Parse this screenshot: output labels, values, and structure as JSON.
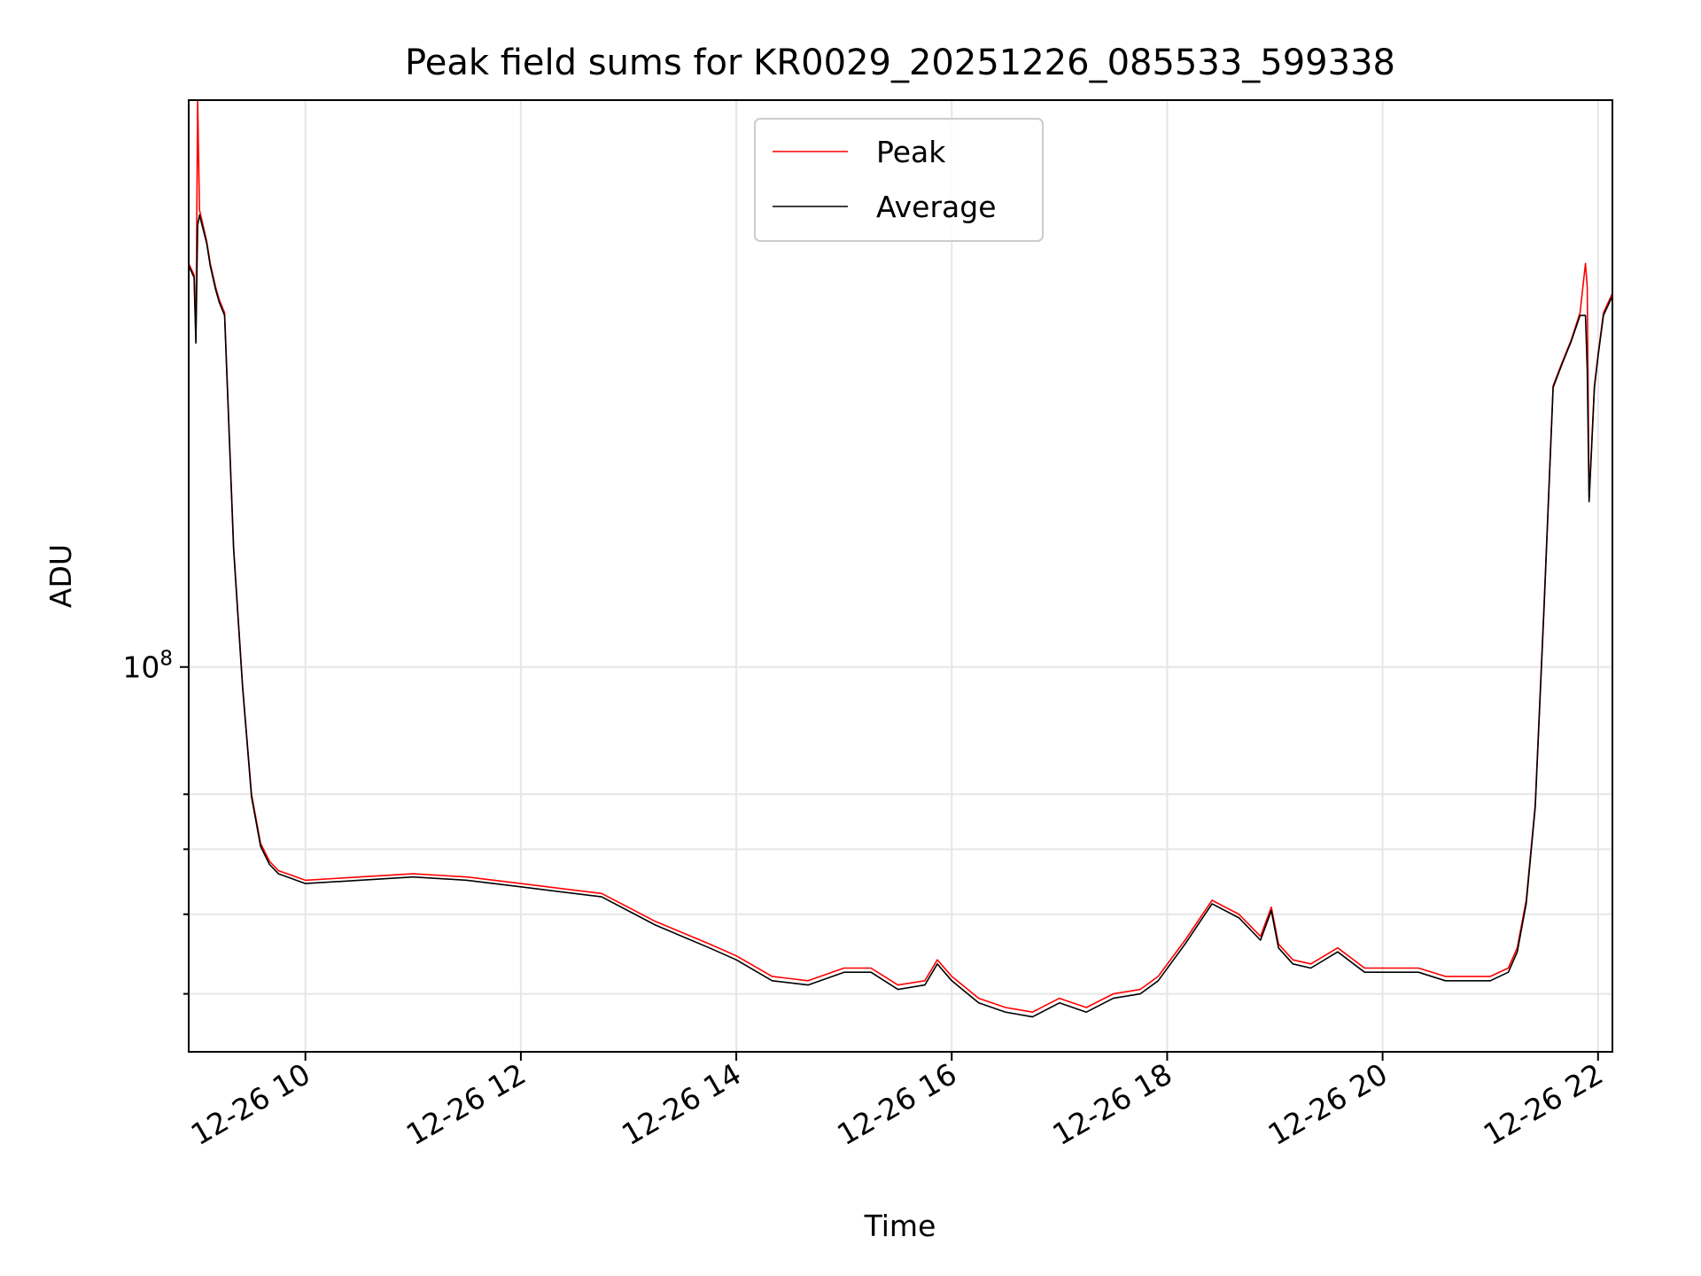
{
  "chart_data": {
    "type": "line",
    "title": "Peak field sums for KR0029_20251226_085533_599338",
    "xlabel": "Time",
    "ylabel": "ADU",
    "xscale": "time",
    "yscale": "log",
    "xlim": [
      "2025-12-26T08:55",
      "2025-12-26T22:08"
    ],
    "ylim": [
      34000000,
      490000000
    ],
    "xticks": [
      {
        "value": "2025-12-26T10:00",
        "label": "12-26 10"
      },
      {
        "value": "2025-12-26T12:00",
        "label": "12-26 12"
      },
      {
        "value": "2025-12-26T14:00",
        "label": "12-26 14"
      },
      {
        "value": "2025-12-26T16:00",
        "label": "12-26 16"
      },
      {
        "value": "2025-12-26T18:00",
        "label": "12-26 18"
      },
      {
        "value": "2025-12-26T20:00",
        "label": "12-26 20"
      },
      {
        "value": "2025-12-26T22:00",
        "label": "12-26 22"
      }
    ],
    "yticks_major": [
      {
        "value": 100000000,
        "label_base": "10",
        "label_exp": "8"
      }
    ],
    "yticks_minor": [
      40000000,
      50000000,
      60000000,
      70000000
    ],
    "grid": true,
    "legend_position": "top-center",
    "series": [
      {
        "name": "Peak",
        "color": "#ff0000",
        "x": [
          "2025-12-26T08:55",
          "2025-12-26T08:58",
          "2025-12-26T08:59",
          "2025-12-26T09:00",
          "2025-12-26T09:01",
          "2025-12-26T09:05",
          "2025-12-26T09:07",
          "2025-12-26T09:10",
          "2025-12-26T09:12",
          "2025-12-26T09:15",
          "2025-12-26T09:20",
          "2025-12-26T09:25",
          "2025-12-26T09:30",
          "2025-12-26T09:35",
          "2025-12-26T09:40",
          "2025-12-26T09:45",
          "2025-12-26T09:50",
          "2025-12-26T10:00",
          "2025-12-26T10:30",
          "2025-12-26T11:00",
          "2025-12-26T11:30",
          "2025-12-26T12:00",
          "2025-12-26T12:45",
          "2025-12-26T13:15",
          "2025-12-26T13:45",
          "2025-12-26T14:00",
          "2025-12-26T14:20",
          "2025-12-26T14:40",
          "2025-12-26T15:00",
          "2025-12-26T15:15",
          "2025-12-26T15:30",
          "2025-12-26T15:45",
          "2025-12-26T15:52",
          "2025-12-26T16:00",
          "2025-12-26T16:15",
          "2025-12-26T16:30",
          "2025-12-26T16:45",
          "2025-12-26T17:00",
          "2025-12-26T17:15",
          "2025-12-26T17:30",
          "2025-12-26T17:45",
          "2025-12-26T17:55",
          "2025-12-26T18:10",
          "2025-12-26T18:25",
          "2025-12-26T18:40",
          "2025-12-26T18:52",
          "2025-12-26T18:58",
          "2025-12-26T19:02",
          "2025-12-26T19:10",
          "2025-12-26T19:20",
          "2025-12-26T19:35",
          "2025-12-26T19:50",
          "2025-12-26T20:00",
          "2025-12-26T20:20",
          "2025-12-26T20:35",
          "2025-12-26T21:00",
          "2025-12-26T21:10",
          "2025-12-26T21:15",
          "2025-12-26T21:20",
          "2025-12-26T21:25",
          "2025-12-26T21:30",
          "2025-12-26T21:35",
          "2025-12-26T21:40",
          "2025-12-26T21:45",
          "2025-12-26T21:50",
          "2025-12-26T21:53",
          "2025-12-26T21:54",
          "2025-12-26T21:55",
          "2025-12-26T21:58",
          "2025-12-26T22:00",
          "2025-12-26T22:03",
          "2025-12-26T22:08"
        ],
        "y": [
          310000000,
          300000000,
          250000000,
          490000000,
          360000000,
          330000000,
          310000000,
          290000000,
          280000000,
          270000000,
          140000000,
          95000000,
          70000000,
          61000000,
          58000000,
          56500000,
          56000000,
          55000000,
          55500000,
          56000000,
          55500000,
          54500000,
          53000000,
          49000000,
          46000000,
          44500000,
          42000000,
          41500000,
          43000000,
          43000000,
          41000000,
          41500000,
          44000000,
          42000000,
          39500000,
          38500000,
          38000000,
          39500000,
          38500000,
          40000000,
          40500000,
          42000000,
          46500000,
          52000000,
          50000000,
          47000000,
          51000000,
          46000000,
          44000000,
          43500000,
          45500000,
          43000000,
          43000000,
          43000000,
          42000000,
          42000000,
          43000000,
          45500000,
          52000000,
          68000000,
          120000000,
          220000000,
          235000000,
          250000000,
          270000000,
          310000000,
          290000000,
          160000000,
          220000000,
          240000000,
          270000000,
          285000000
        ]
      },
      {
        "name": "Average",
        "color": "#000000",
        "x": [
          "2025-12-26T08:55",
          "2025-12-26T08:58",
          "2025-12-26T08:59",
          "2025-12-26T09:00",
          "2025-12-26T09:01",
          "2025-12-26T09:05",
          "2025-12-26T09:07",
          "2025-12-26T09:10",
          "2025-12-26T09:12",
          "2025-12-26T09:15",
          "2025-12-26T09:20",
          "2025-12-26T09:25",
          "2025-12-26T09:30",
          "2025-12-26T09:35",
          "2025-12-26T09:40",
          "2025-12-26T09:45",
          "2025-12-26T09:50",
          "2025-12-26T10:00",
          "2025-12-26T10:30",
          "2025-12-26T11:00",
          "2025-12-26T11:30",
          "2025-12-26T12:00",
          "2025-12-26T12:45",
          "2025-12-26T13:15",
          "2025-12-26T13:45",
          "2025-12-26T14:00",
          "2025-12-26T14:20",
          "2025-12-26T14:40",
          "2025-12-26T15:00",
          "2025-12-26T15:15",
          "2025-12-26T15:30",
          "2025-12-26T15:45",
          "2025-12-26T15:52",
          "2025-12-26T16:00",
          "2025-12-26T16:15",
          "2025-12-26T16:30",
          "2025-12-26T16:45",
          "2025-12-26T17:00",
          "2025-12-26T17:15",
          "2025-12-26T17:30",
          "2025-12-26T17:45",
          "2025-12-26T17:55",
          "2025-12-26T18:10",
          "2025-12-26T18:25",
          "2025-12-26T18:40",
          "2025-12-26T18:52",
          "2025-12-26T18:58",
          "2025-12-26T19:02",
          "2025-12-26T19:10",
          "2025-12-26T19:20",
          "2025-12-26T19:35",
          "2025-12-26T19:50",
          "2025-12-26T20:00",
          "2025-12-26T20:20",
          "2025-12-26T20:35",
          "2025-12-26T21:00",
          "2025-12-26T21:10",
          "2025-12-26T21:15",
          "2025-12-26T21:20",
          "2025-12-26T21:25",
          "2025-12-26T21:30",
          "2025-12-26T21:35",
          "2025-12-26T21:40",
          "2025-12-26T21:45",
          "2025-12-26T21:50",
          "2025-12-26T21:53",
          "2025-12-26T21:54",
          "2025-12-26T21:55",
          "2025-12-26T21:58",
          "2025-12-26T22:00",
          "2025-12-26T22:03",
          "2025-12-26T22:08"
        ],
        "y": [
          308000000,
          298000000,
          248000000,
          345000000,
          355000000,
          328000000,
          308000000,
          288000000,
          278000000,
          268000000,
          139000000,
          94500000,
          69500000,
          60500000,
          57500000,
          56000000,
          55500000,
          54500000,
          55000000,
          55500000,
          55000000,
          54000000,
          52500000,
          48500000,
          45500000,
          44000000,
          41500000,
          41000000,
          42500000,
          42500000,
          40500000,
          41000000,
          43500000,
          41500000,
          39000000,
          38000000,
          37500000,
          39000000,
          38000000,
          39500000,
          40000000,
          41500000,
          46000000,
          51500000,
          49500000,
          46500000,
          50500000,
          45500000,
          43500000,
          43000000,
          45000000,
          42500000,
          42500000,
          42500000,
          41500000,
          41500000,
          42500000,
          45000000,
          51500000,
          67500000,
          119000000,
          219000000,
          234000000,
          249000000,
          268000000,
          268000000,
          230000000,
          159000000,
          219000000,
          239000000,
          268000000,
          283000000
        ]
      }
    ]
  }
}
